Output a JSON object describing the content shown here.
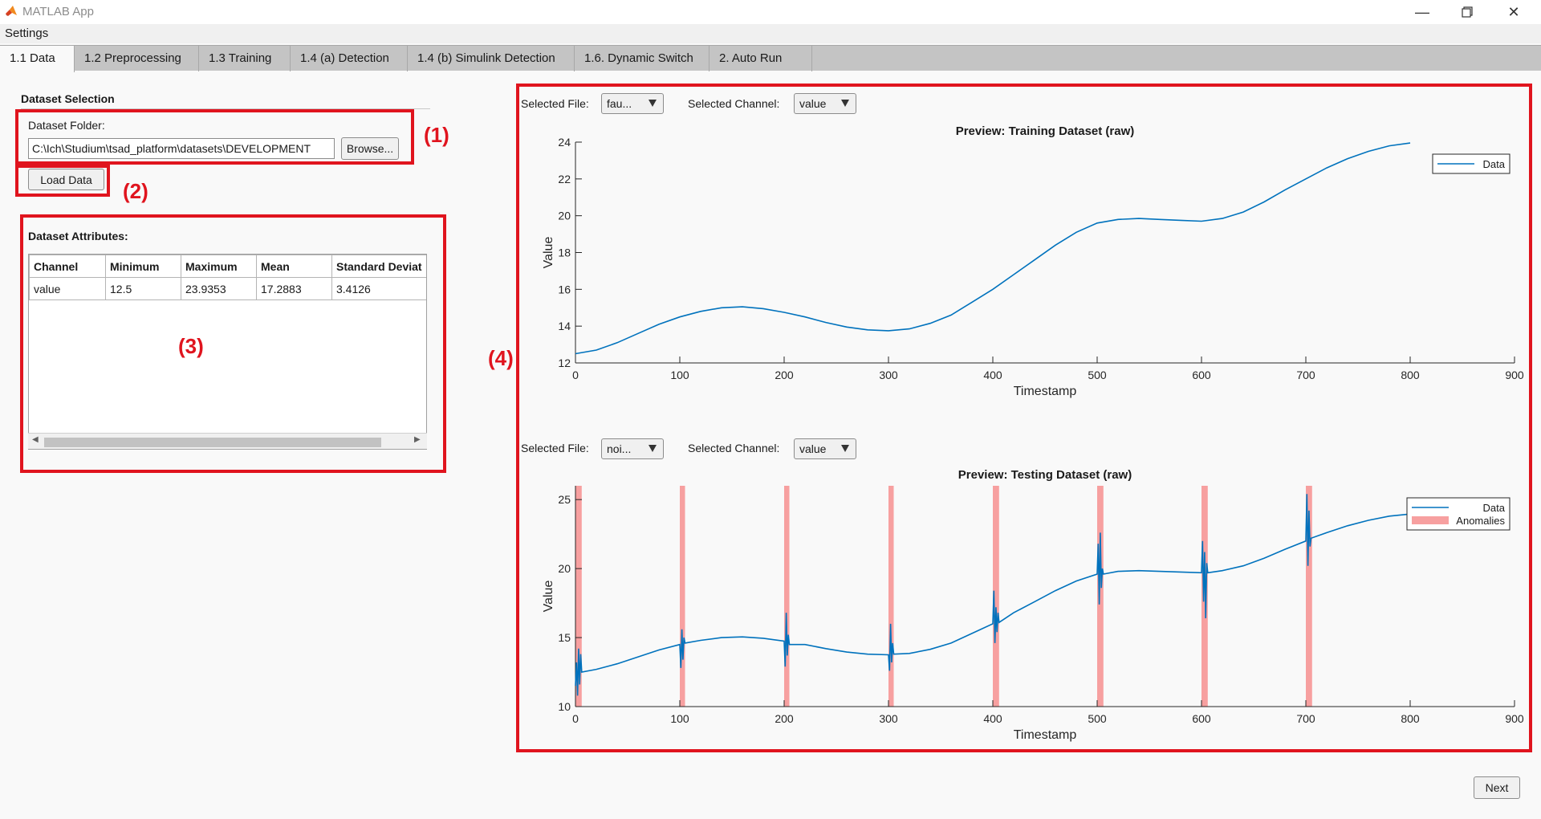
{
  "window": {
    "title": "MATLAB App",
    "icon": "matlab-icon",
    "controls": [
      "minimize-icon",
      "restore-icon",
      "close-icon"
    ]
  },
  "menu": {
    "settings": "Settings"
  },
  "tabs": [
    {
      "label": "1.1 Data",
      "active": true
    },
    {
      "label": "1.2 Preprocessing"
    },
    {
      "label": "1.3 Training"
    },
    {
      "label": "1.4 (a) Detection"
    },
    {
      "label": "1.4 (b) Simulink Detection"
    },
    {
      "label": "1.6. Dynamic Switch"
    },
    {
      "label": "2. Auto Run"
    }
  ],
  "dataset": {
    "heading": "Dataset Selection",
    "folder_label": "Dataset Folder:",
    "folder_value": "C:\\Ich\\Studium\\tsad_platform\\datasets\\DEVELOPMENT",
    "browse_label": "Browse...",
    "load_label": "Load Data"
  },
  "attributes": {
    "heading": "Dataset Attributes:",
    "columns": [
      "Channel",
      "Minimum",
      "Maximum",
      "Mean",
      "Standard Deviat"
    ],
    "rows": [
      [
        "value",
        "12.5",
        "23.9353",
        "17.2883",
        "3.4126"
      ]
    ]
  },
  "annotations": [
    "(1)",
    "(2)",
    "(3)",
    "(4)"
  ],
  "annotation_color": "#e0141e",
  "training_preview": {
    "file_label": "Selected File:",
    "file_value": "fau...",
    "channel_label": "Selected Channel:",
    "channel_value": "value"
  },
  "testing_preview": {
    "file_label": "Selected File:",
    "file_value": "noi...",
    "channel_label": "Selected Channel:",
    "channel_value": "value"
  },
  "next_label": "Next",
  "chart_data": [
    {
      "type": "line",
      "title": "Preview: Training Dataset (raw)",
      "xlabel": "Timestamp",
      "ylabel": "Value",
      "xlim": [
        0,
        900
      ],
      "ylim": [
        12,
        24
      ],
      "xticks": [
        "0",
        "100",
        "200",
        "300",
        "400",
        "500",
        "600",
        "700",
        "800",
        "900"
      ],
      "yticks": [
        "12",
        "14",
        "16",
        "18",
        "20",
        "22",
        "24"
      ],
      "legend": [
        "Data"
      ],
      "legend_position": "top-right",
      "series": [
        {
          "color": "#0072bd",
          "x": [
            0,
            20,
            40,
            60,
            80,
            100,
            120,
            140,
            160,
            180,
            200,
            220,
            240,
            260,
            280,
            300,
            320,
            340,
            360,
            380,
            400,
            420,
            440,
            460,
            480,
            500,
            520,
            540,
            560,
            580,
            600,
            620,
            640,
            660,
            680,
            700,
            720,
            740,
            760,
            780,
            800
          ],
          "y": [
            12.5,
            12.7,
            13.1,
            13.6,
            14.1,
            14.5,
            14.8,
            15.0,
            15.05,
            14.95,
            14.75,
            14.5,
            14.2,
            13.95,
            13.8,
            13.75,
            13.85,
            14.15,
            14.6,
            15.3,
            16.0,
            16.8,
            17.6,
            18.4,
            19.1,
            19.6,
            19.8,
            19.85,
            19.8,
            19.75,
            19.7,
            19.85,
            20.2,
            20.75,
            21.4,
            22.0,
            22.6,
            23.1,
            23.5,
            23.8,
            23.95
          ]
        }
      ]
    },
    {
      "type": "line",
      "title": "Preview: Testing Dataset (raw)",
      "xlabel": "Timestamp",
      "ylabel": "Value",
      "xlim": [
        0,
        900
      ],
      "ylim": [
        10,
        26
      ],
      "xticks": [
        "0",
        "100",
        "200",
        "300",
        "400",
        "500",
        "600",
        "700",
        "800",
        "900"
      ],
      "yticks": [
        "10",
        "15",
        "20",
        "25"
      ],
      "legend": [
        "Data",
        "Anomalies"
      ],
      "legend_position": "top-right",
      "anomaly_color": "#f7a0a0",
      "anomaly_ranges": [
        [
          0,
          6
        ],
        [
          100,
          105
        ],
        [
          200,
          205
        ],
        [
          300,
          305
        ],
        [
          400,
          406
        ],
        [
          500,
          506
        ],
        [
          600,
          606
        ],
        [
          700,
          706
        ]
      ],
      "series": [
        {
          "color": "#0072bd",
          "x": [
            0,
            1,
            2,
            3,
            4,
            5,
            6,
            20,
            40,
            60,
            80,
            100,
            101,
            102,
            103,
            104,
            105,
            120,
            140,
            160,
            180,
            200,
            201,
            202,
            203,
            204,
            205,
            220,
            240,
            260,
            280,
            300,
            301,
            302,
            303,
            304,
            305,
            320,
            340,
            360,
            380,
            400,
            401,
            402,
            403,
            404,
            405,
            406,
            420,
            440,
            460,
            480,
            500,
            501,
            502,
            503,
            504,
            505,
            506,
            520,
            540,
            560,
            580,
            600,
            601,
            602,
            603,
            604,
            605,
            606,
            620,
            640,
            660,
            680,
            700,
            701,
            702,
            703,
            704,
            705,
            720,
            740,
            760,
            780,
            800
          ],
          "y": [
            11.5,
            13.2,
            10.8,
            14.2,
            11.6,
            13.8,
            12.5,
            12.7,
            13.1,
            13.6,
            14.1,
            14.5,
            12.8,
            15.6,
            13.4,
            15.0,
            14.6,
            14.8,
            15.0,
            15.05,
            14.95,
            14.75,
            12.9,
            16.8,
            13.7,
            15.2,
            14.5,
            14.5,
            14.2,
            13.95,
            13.8,
            13.75,
            12.6,
            16.0,
            13.2,
            14.6,
            13.8,
            13.85,
            14.15,
            14.6,
            15.3,
            16.0,
            18.4,
            14.6,
            17.2,
            15.4,
            16.8,
            16.1,
            16.8,
            17.6,
            18.4,
            19.1,
            19.6,
            21.8,
            17.4,
            22.6,
            18.6,
            20.0,
            19.6,
            19.8,
            19.85,
            19.8,
            19.75,
            19.7,
            22.0,
            17.6,
            21.2,
            16.4,
            20.4,
            19.7,
            19.85,
            20.2,
            20.75,
            21.4,
            22.0,
            25.4,
            20.2,
            24.2,
            21.6,
            22.2,
            22.6,
            23.1,
            23.5,
            23.8,
            23.95
          ]
        }
      ]
    }
  ]
}
